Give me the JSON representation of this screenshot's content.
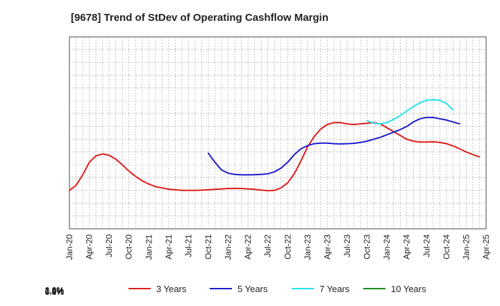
{
  "chart_data": {
    "type": "line",
    "title": "[9678]  Trend of StDev of Operating Cashflow Margin",
    "xlabel": "",
    "ylabel": "",
    "x_ticks": [
      "Jan-20",
      "Apr-20",
      "Jul-20",
      "Oct-20",
      "Jan-21",
      "Apr-21",
      "Jul-21",
      "Oct-21",
      "Jan-22",
      "Apr-22",
      "Jul-22",
      "Oct-22",
      "Jan-23",
      "Apr-23",
      "Jul-23",
      "Oct-23",
      "Jan-24",
      "Apr-24",
      "Jul-24",
      "Oct-24",
      "Jan-25",
      "Apr-25"
    ],
    "y_ticks": [
      "0.6%",
      "0.8%",
      "1.0%",
      "1.2%",
      "1.4%",
      "1.6%",
      "1.8%",
      "2.0%"
    ],
    "x_range": [
      "2020-01",
      "2025-04"
    ],
    "ylim": [
      0.5,
      2.0
    ],
    "grid": true,
    "legend_position": "bottom",
    "series": [
      {
        "name": "3 Years",
        "color": "#dd1c1c",
        "start": "2020-01",
        "values": [
          0.8,
          0.84,
          0.92,
          1.02,
          1.07,
          1.085,
          1.075,
          1.045,
          1.0,
          0.95,
          0.91,
          0.875,
          0.85,
          0.83,
          0.82,
          0.81,
          0.805,
          0.8,
          0.8,
          0.8,
          0.802,
          0.805,
          0.808,
          0.812,
          0.815,
          0.816,
          0.815,
          0.812,
          0.808,
          0.802,
          0.798,
          0.8,
          0.82,
          0.86,
          0.93,
          1.03,
          1.14,
          1.22,
          1.28,
          1.315,
          1.33,
          1.33,
          1.32,
          1.315,
          1.32,
          1.325,
          1.33,
          1.32,
          1.29,
          1.26,
          1.23,
          1.2,
          1.185,
          1.178,
          1.178,
          1.18,
          1.175,
          1.165,
          1.148,
          1.125,
          1.1,
          1.08,
          1.062
        ]
      },
      {
        "name": "5 Years",
        "color": "#1c1ccc",
        "start": "2021-10",
        "values": [
          1.09,
          1.02,
          0.96,
          0.935,
          0.925,
          0.922,
          0.922,
          0.923,
          0.925,
          0.93,
          0.945,
          0.975,
          1.02,
          1.08,
          1.125,
          1.15,
          1.165,
          1.17,
          1.17,
          1.165,
          1.163,
          1.165,
          1.168,
          1.175,
          1.185,
          1.2,
          1.215,
          1.235,
          1.255,
          1.275,
          1.3,
          1.335,
          1.36,
          1.37,
          1.37,
          1.36,
          1.35,
          1.335,
          1.32
        ]
      },
      {
        "name": "7 Years",
        "color": "#22e5ef",
        "start": "2023-10",
        "values": [
          1.345,
          1.325,
          1.32,
          1.33,
          1.355,
          1.385,
          1.42,
          1.455,
          1.485,
          1.505,
          1.51,
          1.505,
          1.48,
          1.43
        ]
      },
      {
        "name": "10 Years",
        "color": "#1a8a1a",
        "start": "",
        "values": []
      }
    ]
  }
}
